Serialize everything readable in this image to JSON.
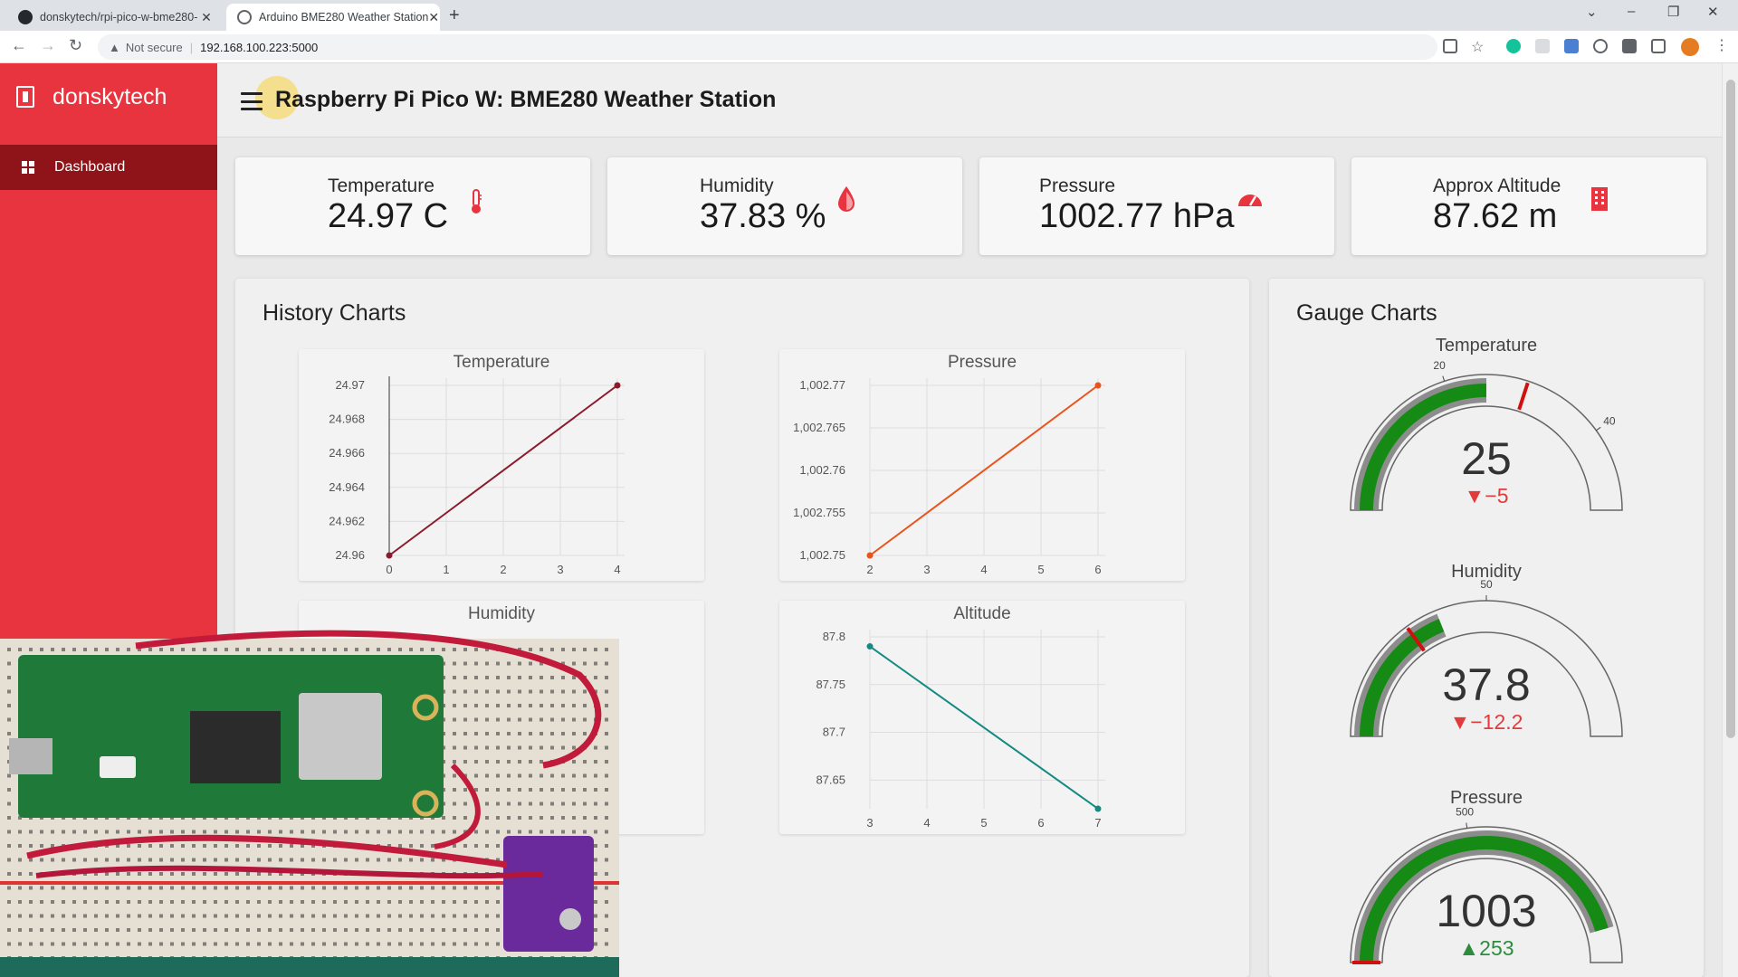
{
  "browser": {
    "tabs": [
      {
        "title": "donskytech/rpi-pico-w-bme280-",
        "active": false
      },
      {
        "title": "Arduino BME280 Weather Station",
        "active": true
      }
    ],
    "security_label": "Not secure",
    "url": "192.168.100.223:5000"
  },
  "sidebar": {
    "brand": "donskytech",
    "nav_items": [
      {
        "label": "Dashboard",
        "active": true
      }
    ],
    "color": "#e8343f",
    "active_color": "#8e1419"
  },
  "header": {
    "title": "Raspberry Pi Pico W: BME280 Weather Station"
  },
  "cards": [
    {
      "label": "Temperature",
      "value": "24.97 C",
      "icon": "thermometer-icon"
    },
    {
      "label": "Humidity",
      "value": "37.83 %",
      "icon": "droplet-icon"
    },
    {
      "label": "Pressure",
      "value": "1002.77 hPa",
      "icon": "speedometer-icon"
    },
    {
      "label": "Approx Altitude",
      "value": "87.62 m",
      "icon": "building-icon"
    }
  ],
  "history": {
    "title": "History Charts"
  },
  "gauges_panel": {
    "title": "Gauge Charts"
  },
  "chart_data": [
    {
      "type": "line",
      "title": "Temperature",
      "x": [
        0,
        4
      ],
      "y": [
        24.96,
        24.97
      ],
      "xticks": [
        "0",
        "1",
        "2",
        "3",
        "4"
      ],
      "yticks": [
        "24.96",
        "24.962",
        "24.964",
        "24.966",
        "24.968",
        "24.97"
      ],
      "xlim": [
        0,
        4
      ],
      "ylim": [
        24.96,
        24.97
      ],
      "color": "#8b1a2b"
    },
    {
      "type": "line",
      "title": "Pressure",
      "x": [
        2,
        6
      ],
      "y": [
        1002.75,
        1002.77
      ],
      "xticks": [
        "2",
        "3",
        "4",
        "5",
        "6"
      ],
      "yticks": [
        "1,002.75",
        "1,002.755",
        "1,002.76",
        "1,002.765",
        "1,002.77"
      ],
      "xlim": [
        2,
        6
      ],
      "ylim": [
        1002.75,
        1002.77
      ],
      "color": "#e8541c"
    },
    {
      "type": "line",
      "title": "Humidity"
    },
    {
      "type": "line",
      "title": "Altitude",
      "x": [
        3,
        7
      ],
      "y": [
        87.79,
        87.62
      ],
      "xticks": [
        "3",
        "4",
        "5",
        "6",
        "7"
      ],
      "yticks": [
        "87.65",
        "87.7",
        "87.75",
        "87.8"
      ],
      "xlim": [
        3,
        7
      ],
      "ylim": [
        87.62,
        87.8
      ],
      "color": "#138a82"
    },
    {
      "type": "gauge",
      "title": "Temperature",
      "value": "25",
      "delta": "▼−5",
      "delta_dir": "down",
      "range": [
        0,
        50
      ],
      "value_num": 25,
      "threshold_num": 30,
      "ticks": [
        "20",
        "40"
      ],
      "tick_vals": [
        20,
        40
      ]
    },
    {
      "type": "gauge",
      "title": "Humidity",
      "value": "37.8",
      "delta": "▼−12.2",
      "delta_dir": "down",
      "range": [
        0,
        100
      ],
      "value_num": 37.8,
      "threshold_num": 30,
      "ticks": [
        "50"
      ],
      "tick_vals": [
        50
      ]
    },
    {
      "type": "gauge",
      "title": "Pressure",
      "value": "1003",
      "delta": "▲253",
      "delta_dir": "up",
      "range": [
        0,
        1100
      ],
      "value_num": 1003,
      "threshold_num": 0,
      "ticks": [
        "500"
      ],
      "tick_vals": [
        500
      ]
    }
  ]
}
